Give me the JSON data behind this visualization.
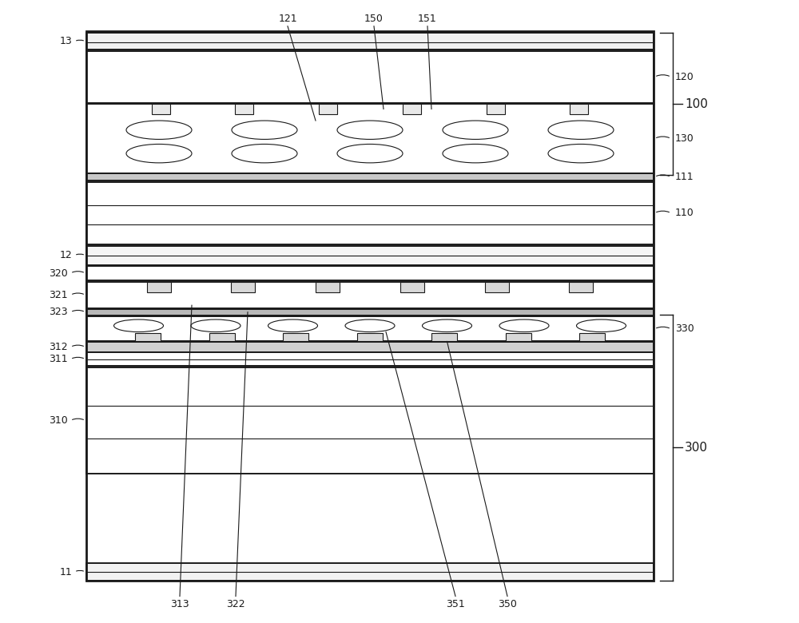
{
  "bg_color": "#ffffff",
  "line_color": "#1a1a1a",
  "fig_width": 10.0,
  "fig_height": 7.8,
  "dpi": 100,
  "MX": 0.108,
  "MY": 0.068,
  "MW": 0.71,
  "MH": 0.882
}
